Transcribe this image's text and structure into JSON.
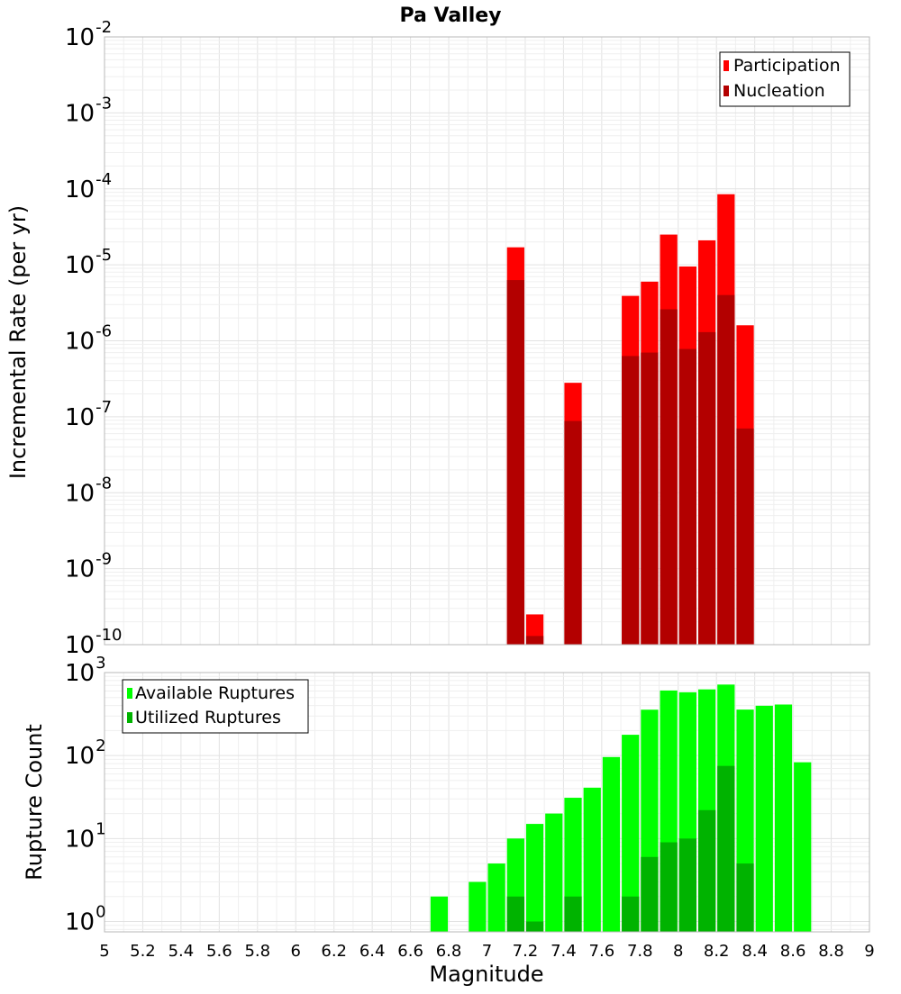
{
  "chart_data": [
    {
      "type": "bar",
      "title": "Pa Valley",
      "xlabel": "",
      "ylabel": "Incremental Rate (per yr)",
      "yscale": "log",
      "ylim": [
        1e-10,
        0.01
      ],
      "xlim": [
        5,
        9
      ],
      "grid": true,
      "legend_position": "top-right",
      "y_tick_labels": [
        {
          "base": "10",
          "exp": "-10"
        },
        {
          "base": "10",
          "exp": "-9"
        },
        {
          "base": "10",
          "exp": "-8"
        },
        {
          "base": "10",
          "exp": "-7"
        },
        {
          "base": "10",
          "exp": "-6"
        },
        {
          "base": "10",
          "exp": "-5"
        },
        {
          "base": "10",
          "exp": "-4"
        },
        {
          "base": "10",
          "exp": "-3"
        },
        {
          "base": "10",
          "exp": "-2"
        }
      ],
      "series": [
        {
          "name": "Participation",
          "color": "#ff0000",
          "points": [
            {
              "x": 7.15,
              "y": 1.7e-05
            },
            {
              "x": 7.25,
              "y": 2.5e-10
            },
            {
              "x": 7.45,
              "y": 2.8e-07
            },
            {
              "x": 7.75,
              "y": 3.9e-06
            },
            {
              "x": 7.85,
              "y": 6e-06
            },
            {
              "x": 7.95,
              "y": 2.5e-05
            },
            {
              "x": 8.05,
              "y": 9.5e-06
            },
            {
              "x": 8.15,
              "y": 2.1e-05
            },
            {
              "x": 8.25,
              "y": 8.5e-05
            },
            {
              "x": 8.35,
              "y": 1.6e-06
            }
          ]
        },
        {
          "name": "Nucleation",
          "color": "#b30000",
          "points": [
            {
              "x": 7.15,
              "y": 6.3e-06
            },
            {
              "x": 7.25,
              "y": 1.3e-10
            },
            {
              "x": 7.45,
              "y": 8.8e-08
            },
            {
              "x": 7.75,
              "y": 6.3e-07
            },
            {
              "x": 7.85,
              "y": 7e-07
            },
            {
              "x": 7.95,
              "y": 2.6e-06
            },
            {
              "x": 8.05,
              "y": 7.8e-07
            },
            {
              "x": 8.15,
              "y": 1.3e-06
            },
            {
              "x": 8.25,
              "y": 4e-06
            },
            {
              "x": 8.35,
              "y": 7e-08
            }
          ]
        }
      ]
    },
    {
      "type": "bar",
      "title": "",
      "xlabel": "Magnitude",
      "ylabel": "Rupture Count",
      "yscale": "log",
      "ylim": [
        0.75,
        1000
      ],
      "xlim": [
        5,
        9
      ],
      "grid": true,
      "legend_position": "top-left",
      "x_ticks": [
        5,
        5.2,
        5.4,
        5.6,
        5.8,
        6,
        6.2,
        6.4,
        6.6,
        6.8,
        7,
        7.2,
        7.4,
        7.6,
        7.8,
        8,
        8.2,
        8.4,
        8.6,
        8.8,
        9
      ],
      "x_tick_labels": [
        "5",
        "5.2",
        "5.4",
        "5.6",
        "5.8",
        "6",
        "6.2",
        "6.4",
        "6.6",
        "6.8",
        "7",
        "7.2",
        "7.4",
        "7.6",
        "7.8",
        "8",
        "8.2",
        "8.4",
        "8.6",
        "8.8",
        "9"
      ],
      "y_tick_labels": [
        {
          "base": "10",
          "exp": "0"
        },
        {
          "base": "10",
          "exp": "1"
        },
        {
          "base": "10",
          "exp": "2"
        },
        {
          "base": "10",
          "exp": "3"
        }
      ],
      "series": [
        {
          "name": "Available Ruptures",
          "color": "#00ff00",
          "points": [
            {
              "x": 6.75,
              "y": 2
            },
            {
              "x": 6.95,
              "y": 3
            },
            {
              "x": 7.05,
              "y": 5
            },
            {
              "x": 7.15,
              "y": 10
            },
            {
              "x": 7.25,
              "y": 15
            },
            {
              "x": 7.35,
              "y": 20
            },
            {
              "x": 7.45,
              "y": 31
            },
            {
              "x": 7.55,
              "y": 41
            },
            {
              "x": 7.65,
              "y": 96
            },
            {
              "x": 7.75,
              "y": 178
            },
            {
              "x": 7.85,
              "y": 357
            },
            {
              "x": 7.95,
              "y": 608
            },
            {
              "x": 8.05,
              "y": 579
            },
            {
              "x": 8.15,
              "y": 627
            },
            {
              "x": 8.25,
              "y": 717
            },
            {
              "x": 8.35,
              "y": 358
            },
            {
              "x": 8.45,
              "y": 398
            },
            {
              "x": 8.55,
              "y": 412
            },
            {
              "x": 8.65,
              "y": 83
            }
          ]
        },
        {
          "name": "Utilized Ruptures",
          "color": "#00b300",
          "points": [
            {
              "x": 7.15,
              "y": 2
            },
            {
              "x": 7.25,
              "y": 1
            },
            {
              "x": 7.45,
              "y": 2
            },
            {
              "x": 7.75,
              "y": 2
            },
            {
              "x": 7.85,
              "y": 6
            },
            {
              "x": 7.95,
              "y": 9
            },
            {
              "x": 8.05,
              "y": 10
            },
            {
              "x": 8.15,
              "y": 22
            },
            {
              "x": 8.25,
              "y": 75
            },
            {
              "x": 8.35,
              "y": 5
            }
          ]
        }
      ]
    }
  ]
}
